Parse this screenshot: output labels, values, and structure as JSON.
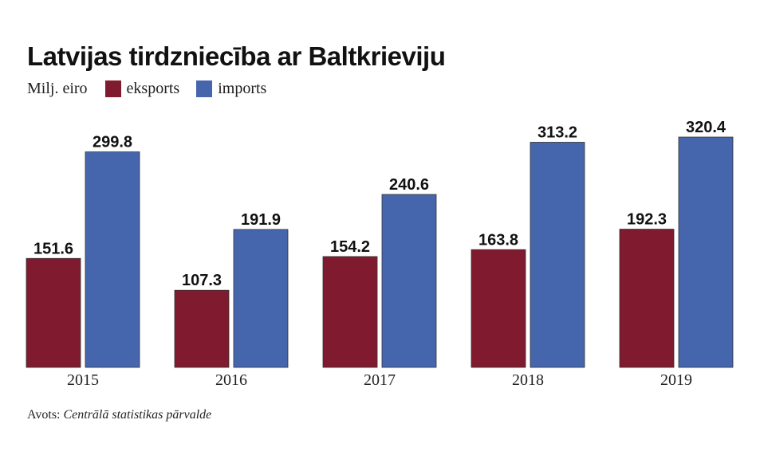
{
  "title": "Latvijas tirdzniecība ar Baltkrieviju",
  "unit_label": "Milj. eiro",
  "source": {
    "prefix": "Avots:",
    "name": "Centrālā statistikas pārvalde"
  },
  "colors": {
    "eksports": "#7f1a2f",
    "imports": "#4566ad"
  },
  "chart_data": {
    "type": "bar",
    "title": "Latvijas tirdzniecība ar Baltkrieviju",
    "ylabel": "Milj. eiro",
    "xlabel": "",
    "categories": [
      "2015",
      "2016",
      "2017",
      "2018",
      "2019"
    ],
    "series": [
      {
        "name": "eksports",
        "values": [
          151.6,
          107.3,
          154.2,
          163.8,
          192.3
        ],
        "labels": [
          "151.6",
          "107.3",
          "154.2",
          "163.8",
          "192.3"
        ]
      },
      {
        "name": "imports",
        "values": [
          299.8,
          191.9,
          240.6,
          313.2,
          320.4
        ],
        "labels": [
          "299.8",
          "191.9",
          "240.6",
          "313.2",
          "320.4"
        ]
      }
    ],
    "ylim": [
      0,
      320.4
    ],
    "grid": false,
    "legend": "top-left"
  }
}
